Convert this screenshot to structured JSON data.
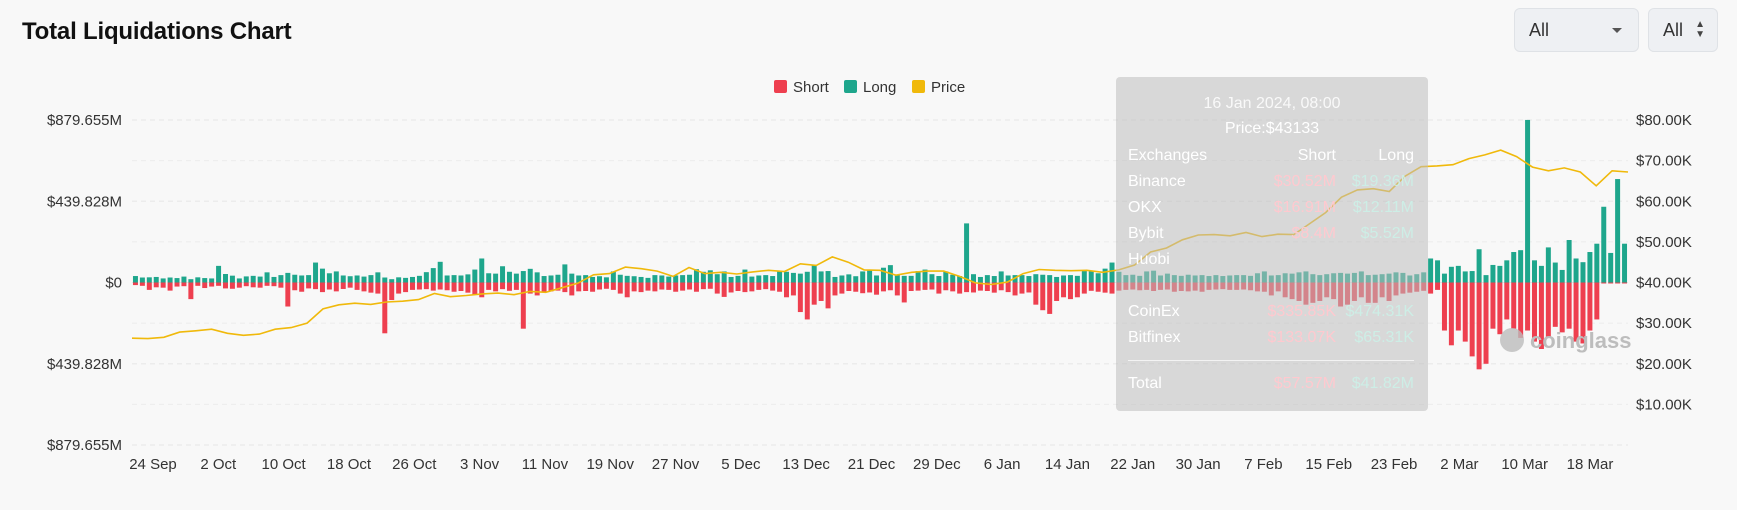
{
  "page": {
    "title": "Total Liquidations Chart"
  },
  "controls": {
    "range_select": {
      "value": "All"
    },
    "exchange_select": {
      "value": "All"
    }
  },
  "watermark": "coinglass",
  "colors": {
    "short": "#ee3f4f",
    "long": "#1ea68c",
    "price": "#f0b90b"
  },
  "chart_data": {
    "type": "bar",
    "legend": [
      "Short",
      "Long",
      "Price"
    ],
    "legend_position": "top-center",
    "grid": true,
    "x_ticks": [
      "24 Sep",
      "2 Oct",
      "10 Oct",
      "18 Oct",
      "26 Oct",
      "3 Nov",
      "11 Nov",
      "19 Nov",
      "27 Nov",
      "5 Dec",
      "13 Dec",
      "21 Dec",
      "29 Dec",
      "6 Jan",
      "14 Jan",
      "22 Jan",
      "30 Jan",
      "7 Feb",
      "15 Feb",
      "23 Feb",
      "2 Mar",
      "10 Mar",
      "18 Mar"
    ],
    "y_left_ticks": [
      "$879.655M",
      "$439.828M",
      "$0",
      "$439.828M",
      "$879.655M"
    ],
    "y_left_range": [
      -879.655,
      879.655
    ],
    "y_right_ticks": [
      "$80.00K",
      "$70.00K",
      "$60.00K",
      "$50.00K",
      "$40.00K",
      "$30.00K",
      "$20.00K",
      "$10.00K"
    ],
    "y_right_range": [
      0,
      80000
    ],
    "series": [
      {
        "name": "Long",
        "unit": "$M",
        "values": [
          35,
          27,
          28,
          30,
          22,
          27,
          24,
          32,
          18,
          28,
          24,
          22,
          90,
          46,
          37,
          22,
          33,
          36,
          32,
          55,
          30,
          40,
          52,
          42,
          38,
          40,
          108,
          75,
          50,
          60,
          38,
          34,
          38,
          32,
          40,
          55,
          27,
          18,
          28,
          25,
          30,
          36,
          56,
          78,
          112,
          38,
          40,
          38,
          44,
          70,
          130,
          50,
          48,
          88,
          58,
          48,
          62,
          74,
          55,
          35,
          38,
          42,
          98,
          48,
          38,
          40,
          30,
          34,
          28,
          60,
          42,
          36,
          34,
          30,
          25,
          40,
          38,
          32,
          38,
          40,
          42,
          72,
          58,
          66,
          45,
          60,
          30,
          36,
          70,
          32,
          38,
          40,
          35,
          62,
          58,
          52,
          48,
          58,
          95,
          60,
          62,
          30,
          38,
          44,
          34,
          60,
          66,
          38,
          80,
          94,
          42,
          36,
          36,
          62,
          70,
          45,
          35,
          60,
          42,
          35,
          320,
          45,
          30,
          40,
          35,
          60,
          38,
          40,
          40,
          35,
          45,
          42,
          40,
          30,
          38,
          40,
          36,
          62,
          64,
          50,
          75,
          108,
          58,
          40,
          42,
          36,
          60,
          64,
          38,
          48,
          40,
          36,
          42,
          38,
          40,
          35,
          40,
          35,
          38,
          40,
          40,
          36,
          50,
          60,
          38,
          40,
          50,
          48,
          55,
          60,
          45,
          40,
          45,
          50,
          52,
          48,
          52,
          60,
          40,
          42,
          45,
          48,
          55,
          52,
          38,
          45,
          55,
          130,
          120,
          48,
          85,
          90,
          60,
          62,
          180,
          40,
          95,
          90,
          120,
          165,
          175,
          880,
          120,
          90,
          190,
          108,
          68,
          230,
          130,
          110,
          165,
          210,
          410,
          160,
          560,
          210
        ],
        "spikes_note": "values read from bar heights"
      },
      {
        "name": "Short",
        "unit": "$M",
        "values": [
          -14,
          -18,
          -40,
          -26,
          -28,
          -44,
          -22,
          -20,
          -90,
          -18,
          -30,
          -22,
          -18,
          -32,
          -34,
          -28,
          -20,
          -26,
          -28,
          -18,
          -20,
          -28,
          -130,
          -42,
          -50,
          -32,
          -36,
          -52,
          -38,
          -48,
          -35,
          -28,
          -40,
          -48,
          -55,
          -60,
          -275,
          -95,
          -60,
          -52,
          -40,
          -38,
          -36,
          -44,
          -38,
          -42,
          -50,
          -46,
          -55,
          -65,
          -80,
          -40,
          -48,
          -36,
          -45,
          -40,
          -250,
          -60,
          -70,
          -52,
          -48,
          -44,
          -52,
          -70,
          -48,
          -46,
          -50,
          -38,
          -34,
          -40,
          -60,
          -80,
          -48,
          -52,
          -44,
          -48,
          -38,
          -40,
          -50,
          -44,
          -38,
          -50,
          -36,
          -34,
          -60,
          -78,
          -54,
          -46,
          -52,
          -48,
          -40,
          -36,
          -44,
          -50,
          -80,
          -70,
          -160,
          -200,
          -120,
          -100,
          -140,
          -70,
          -60,
          -46,
          -50,
          -58,
          -54,
          -66,
          -48,
          -42,
          -70,
          -108,
          -46,
          -44,
          -40,
          -38,
          -60,
          -42,
          -48,
          -60,
          -52,
          -54,
          -44,
          -46,
          -55,
          -42,
          -52,
          -70,
          -60,
          -54,
          -120,
          -150,
          -170,
          -100,
          -80,
          -90,
          -80,
          -60,
          -45,
          -50,
          -55,
          -60,
          -44,
          -40,
          -38,
          -42,
          -40,
          -46,
          -40,
          -38,
          -50,
          -46,
          -48,
          -44,
          -50,
          -40,
          -38,
          -36,
          -40,
          -40,
          -38,
          -42,
          -48,
          -50,
          -70,
          -48,
          -80,
          -90,
          -100,
          -120,
          -110,
          -100,
          -80,
          -90,
          -130,
          -120,
          -100,
          -80,
          -110,
          -110,
          -80,
          -100,
          -70,
          -60,
          -55,
          -50,
          -45,
          -60,
          -40,
          -260,
          -340,
          -260,
          -320,
          -400,
          -470,
          -440,
          -250,
          -280,
          -200,
          -250,
          -300,
          -260,
          -320,
          -360,
          -300,
          -240,
          -270,
          -250,
          -320,
          -330,
          -260,
          -200
        ]
      },
      {
        "name": "Price",
        "unit": "$",
        "values": [
          26300,
          26200,
          26500,
          27800,
          28100,
          28500,
          27500,
          27000,
          27300,
          28500,
          28900,
          30000,
          33500,
          34500,
          34900,
          34600,
          35200,
          35400,
          35800,
          37300,
          36500,
          36800,
          37200,
          37400,
          37000,
          37800,
          37600,
          38700,
          39800,
          41900,
          42200,
          43800,
          43400,
          42800,
          41500,
          43700,
          42200,
          42500,
          42100,
          42600,
          43000,
          42700,
          44600,
          44200,
          46300,
          45000,
          43100,
          43000,
          41800,
          42500,
          42800,
          42800,
          41500,
          39900,
          39500,
          40100,
          42200,
          43200,
          43000,
          42900,
          43000,
          42500,
          43100,
          44300,
          47500,
          48500,
          50500,
          51700,
          51800,
          51500,
          52300,
          51300,
          51900,
          51800,
          54500,
          57200,
          61000,
          62800,
          63100,
          62400,
          66200,
          68500,
          68700,
          69000,
          70500,
          71400,
          72600,
          71000,
          68400,
          67500,
          68200,
          67200,
          63800,
          67500,
          67200
        ]
      }
    ]
  },
  "tooltip": {
    "date": "16 Jan 2024, 08:00",
    "price": "Price:$43133",
    "headers": {
      "name": "Exchanges",
      "short": "Short",
      "long": "Long"
    },
    "rows": [
      {
        "name": "Binance",
        "short": "$30.52M",
        "long": "$19.36M"
      },
      {
        "name": "OKX",
        "short": "$16.91M",
        "long": "$12.11M"
      },
      {
        "name": "Bybit",
        "short": "$8.4M",
        "long": "$5.52M"
      },
      {
        "name": "Huobi",
        "short": "",
        "long": ""
      },
      {
        "name": "CoinEx",
        "short": "$335.85K",
        "long": "$474.31K"
      },
      {
        "name": "Bitfinex",
        "short": "$133.07K",
        "long": "$65.31K"
      }
    ],
    "total": {
      "name": "Total",
      "short": "$57.57M",
      "long": "$41.82M"
    }
  }
}
